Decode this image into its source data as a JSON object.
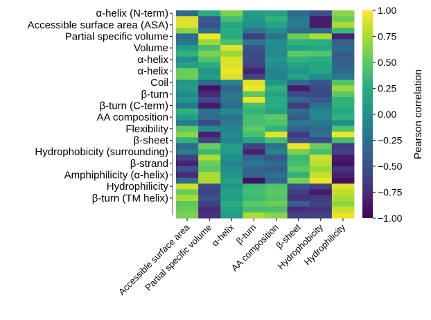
{
  "chart_data": {
    "type": "heatmap",
    "title": "",
    "xlabel": "",
    "ylabel": "",
    "colormap": "viridis",
    "colorbar": {
      "label": "Pearson correlation",
      "min": -1.0,
      "max": 1.0,
      "ticks": [
        "1.00",
        "0.75",
        "0.50",
        "0.25",
        "0.00",
        "−0.25",
        "−0.50",
        "−0.75",
        "−1.00"
      ],
      "tick_values": [
        1.0,
        0.75,
        0.5,
        0.25,
        0.0,
        -0.25,
        -0.5,
        -0.75,
        -1.0
      ]
    },
    "row_count": 36,
    "col_count": 8,
    "y_tick_labels": [
      {
        "row": 0,
        "text": "α-helix (N-term)"
      },
      {
        "row": 2,
        "text": "Accessible surface area (ASA)"
      },
      {
        "row": 4,
        "text": "Partial specific volume"
      },
      {
        "row": 6,
        "text": "Volume"
      },
      {
        "row": 8,
        "text": "α-helix"
      },
      {
        "row": 10,
        "text": "α-helix"
      },
      {
        "row": 12,
        "text": "Coil"
      },
      {
        "row": 14,
        "text": "β-turn"
      },
      {
        "row": 16,
        "text": "β-turn (C-term)"
      },
      {
        "row": 18,
        "text": "AA composition"
      },
      {
        "row": 20,
        "text": "Flexibility"
      },
      {
        "row": 22,
        "text": "β-sheet"
      },
      {
        "row": 24,
        "text": "Hydrophobicity (surrounding)"
      },
      {
        "row": 26,
        "text": "β-strand"
      },
      {
        "row": 28,
        "text": "Amphiphilicity (α-helix)"
      },
      {
        "row": 30,
        "text": "Hydrophilicity"
      },
      {
        "row": 32,
        "text": "β-turn (TM helix)"
      }
    ],
    "x_tick_labels": [
      "Accessible surface area",
      "Partial specific volume",
      "α-helix",
      "β-turn",
      "AA composition",
      "β-sheet",
      "Hydrophobicity",
      "Hydrophilicity"
    ],
    "values": [
      [
        -0.3,
        0.25,
        0.6,
        0.1,
        0.15,
        -0.3,
        -0.5,
        0.65
      ],
      [
        0.9,
        -0.45,
        0.4,
        0.05,
        0.3,
        -0.2,
        -0.85,
        0.55
      ],
      [
        0.9,
        -0.5,
        0.2,
        0.0,
        0.15,
        -0.15,
        -0.85,
        0.75
      ],
      [
        0.65,
        -0.3,
        0.25,
        -0.2,
        0.0,
        -0.3,
        -0.35,
        0.35
      ],
      [
        -0.3,
        0.95,
        0.25,
        -0.65,
        -0.25,
        0.55,
        0.75,
        -0.8
      ],
      [
        -0.2,
        0.7,
        0.4,
        -0.2,
        0.0,
        0.3,
        0.25,
        -0.35
      ],
      [
        0.1,
        0.4,
        0.9,
        -0.5,
        -0.05,
        0.15,
        0.2,
        -0.3
      ],
      [
        0.3,
        0.6,
        0.7,
        -0.55,
        -0.05,
        0.5,
        0.45,
        -0.4
      ],
      [
        0.0,
        0.45,
        0.9,
        -0.55,
        0.05,
        0.3,
        0.25,
        -0.4
      ],
      [
        0.15,
        0.25,
        0.9,
        -0.6,
        -0.05,
        0.15,
        0.2,
        -0.35
      ],
      [
        0.55,
        0.05,
        0.95,
        -0.8,
        -0.1,
        0.05,
        0.2,
        -0.3
      ],
      [
        0.55,
        0.1,
        0.9,
        -0.6,
        -0.1,
        0.15,
        0.0,
        -0.2
      ],
      [
        0.05,
        -0.3,
        -0.1,
        0.9,
        0.05,
        -0.3,
        -0.45,
        0.45
      ],
      [
        0.1,
        -0.9,
        -0.35,
        0.95,
        0.3,
        -0.85,
        -0.55,
        0.7
      ],
      [
        -0.05,
        -0.75,
        -0.2,
        0.5,
        0.15,
        -0.55,
        -0.55,
        0.5
      ],
      [
        0.05,
        -0.55,
        -0.2,
        0.95,
        0.25,
        -0.3,
        -0.45,
        0.3
      ],
      [
        -0.2,
        -0.85,
        -0.3,
        0.4,
        0.25,
        -0.65,
        -0.25,
        0.3
      ],
      [
        0.3,
        -0.25,
        -0.05,
        0.3,
        0.15,
        -0.3,
        -0.1,
        0.2
      ],
      [
        0.1,
        -0.3,
        -0.25,
        0.4,
        0.5,
        -0.4,
        -0.1,
        0.3
      ],
      [
        -0.15,
        -0.55,
        -0.15,
        0.4,
        0.45,
        -0.2,
        -0.2,
        0.0
      ],
      [
        0.5,
        -0.05,
        -0.1,
        0.5,
        0.3,
        -0.35,
        -0.3,
        0.45
      ],
      [
        0.65,
        -0.8,
        -0.05,
        0.4,
        0.9,
        -0.65,
        -0.25,
        0.95
      ],
      [
        0.3,
        -0.6,
        -0.1,
        0.2,
        0.4,
        -0.5,
        -0.55,
        0.4
      ],
      [
        -0.3,
        0.55,
        0.1,
        -0.6,
        -0.25,
        0.95,
        0.55,
        -0.65
      ],
      [
        -0.15,
        0.35,
        0.1,
        -0.8,
        -0.1,
        0.6,
        0.4,
        -0.6
      ],
      [
        -0.6,
        0.75,
        0.0,
        -0.35,
        -0.45,
        0.35,
        0.85,
        -0.85
      ],
      [
        -0.8,
        0.55,
        -0.1,
        -0.2,
        -0.3,
        0.4,
        0.8,
        -0.9
      ],
      [
        -0.5,
        0.5,
        0.0,
        -0.35,
        -0.4,
        0.5,
        0.7,
        -0.7
      ],
      [
        -0.75,
        0.75,
        0.05,
        -0.35,
        -0.25,
        0.3,
        0.85,
        -0.8
      ],
      [
        -0.3,
        0.75,
        0.15,
        -0.9,
        -0.35,
        0.6,
        0.95,
        -0.9
      ],
      [
        0.85,
        -0.55,
        0.05,
        0.35,
        0.45,
        -0.5,
        -0.6,
        0.9
      ],
      [
        0.55,
        -0.6,
        0.15,
        0.4,
        0.5,
        -0.65,
        -0.85,
        0.8
      ],
      [
        0.75,
        -0.5,
        0.1,
        0.35,
        0.45,
        -0.7,
        -0.65,
        0.75
      ],
      [
        0.5,
        -0.6,
        0.25,
        0.5,
        0.55,
        -0.4,
        -0.6,
        0.65
      ],
      [
        0.55,
        -0.75,
        0.15,
        0.4,
        0.4,
        -0.75,
        -0.7,
        0.85
      ],
      [
        0.6,
        -0.7,
        0.1,
        0.75,
        0.65,
        -0.6,
        -0.6,
        0.95
      ]
    ]
  }
}
